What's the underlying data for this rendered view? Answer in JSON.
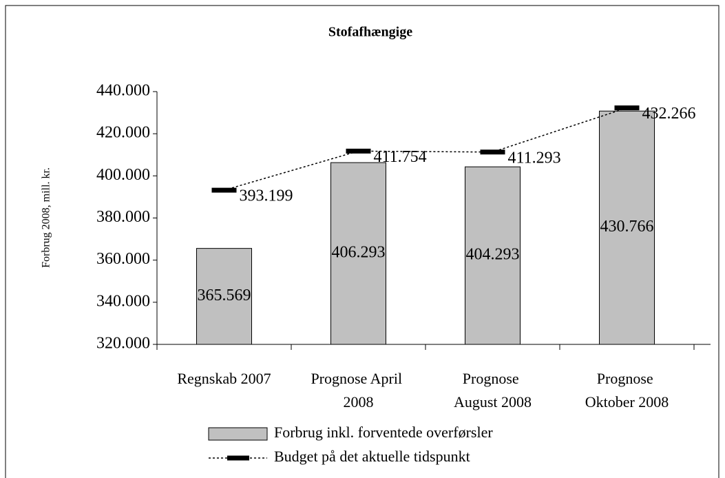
{
  "chart_data": {
    "type": "bar",
    "title": "Stofafhængige",
    "y_label": "Forbrug 2008, mill. kr.",
    "categories": [
      "Regnskab 2007",
      "Prognose April 2008",
      "Prognose August 2008",
      "Prognose Oktober 2008"
    ],
    "series": [
      {
        "name": "Forbrug inkl. forventede overførsler",
        "type": "bar",
        "color": "#c0c0c0",
        "values": [
          365.569,
          406.293,
          404.293,
          430.766
        ],
        "value_labels": [
          "365.569",
          "406.293",
          "404.293",
          "430.766"
        ]
      },
      {
        "name": "Budget på det aktuelle tidspunkt",
        "type": "line",
        "color": "#000000",
        "values": [
          393.199,
          411.754,
          411.293,
          432.266
        ],
        "value_labels": [
          "393.199",
          "411.754",
          "411.293",
          "432.266"
        ]
      }
    ],
    "ylim": [
      320,
      440
    ],
    "yticks": [
      {
        "value": 320,
        "label": "320.000"
      },
      {
        "value": 340,
        "label": "340.000"
      },
      {
        "value": 360,
        "label": "360.000"
      },
      {
        "value": 380,
        "label": "380.000"
      },
      {
        "value": 400,
        "label": "400.000"
      },
      {
        "value": 420,
        "label": "420.000"
      },
      {
        "value": 440,
        "label": "440.000"
      }
    ],
    "legend": "bottom"
  }
}
